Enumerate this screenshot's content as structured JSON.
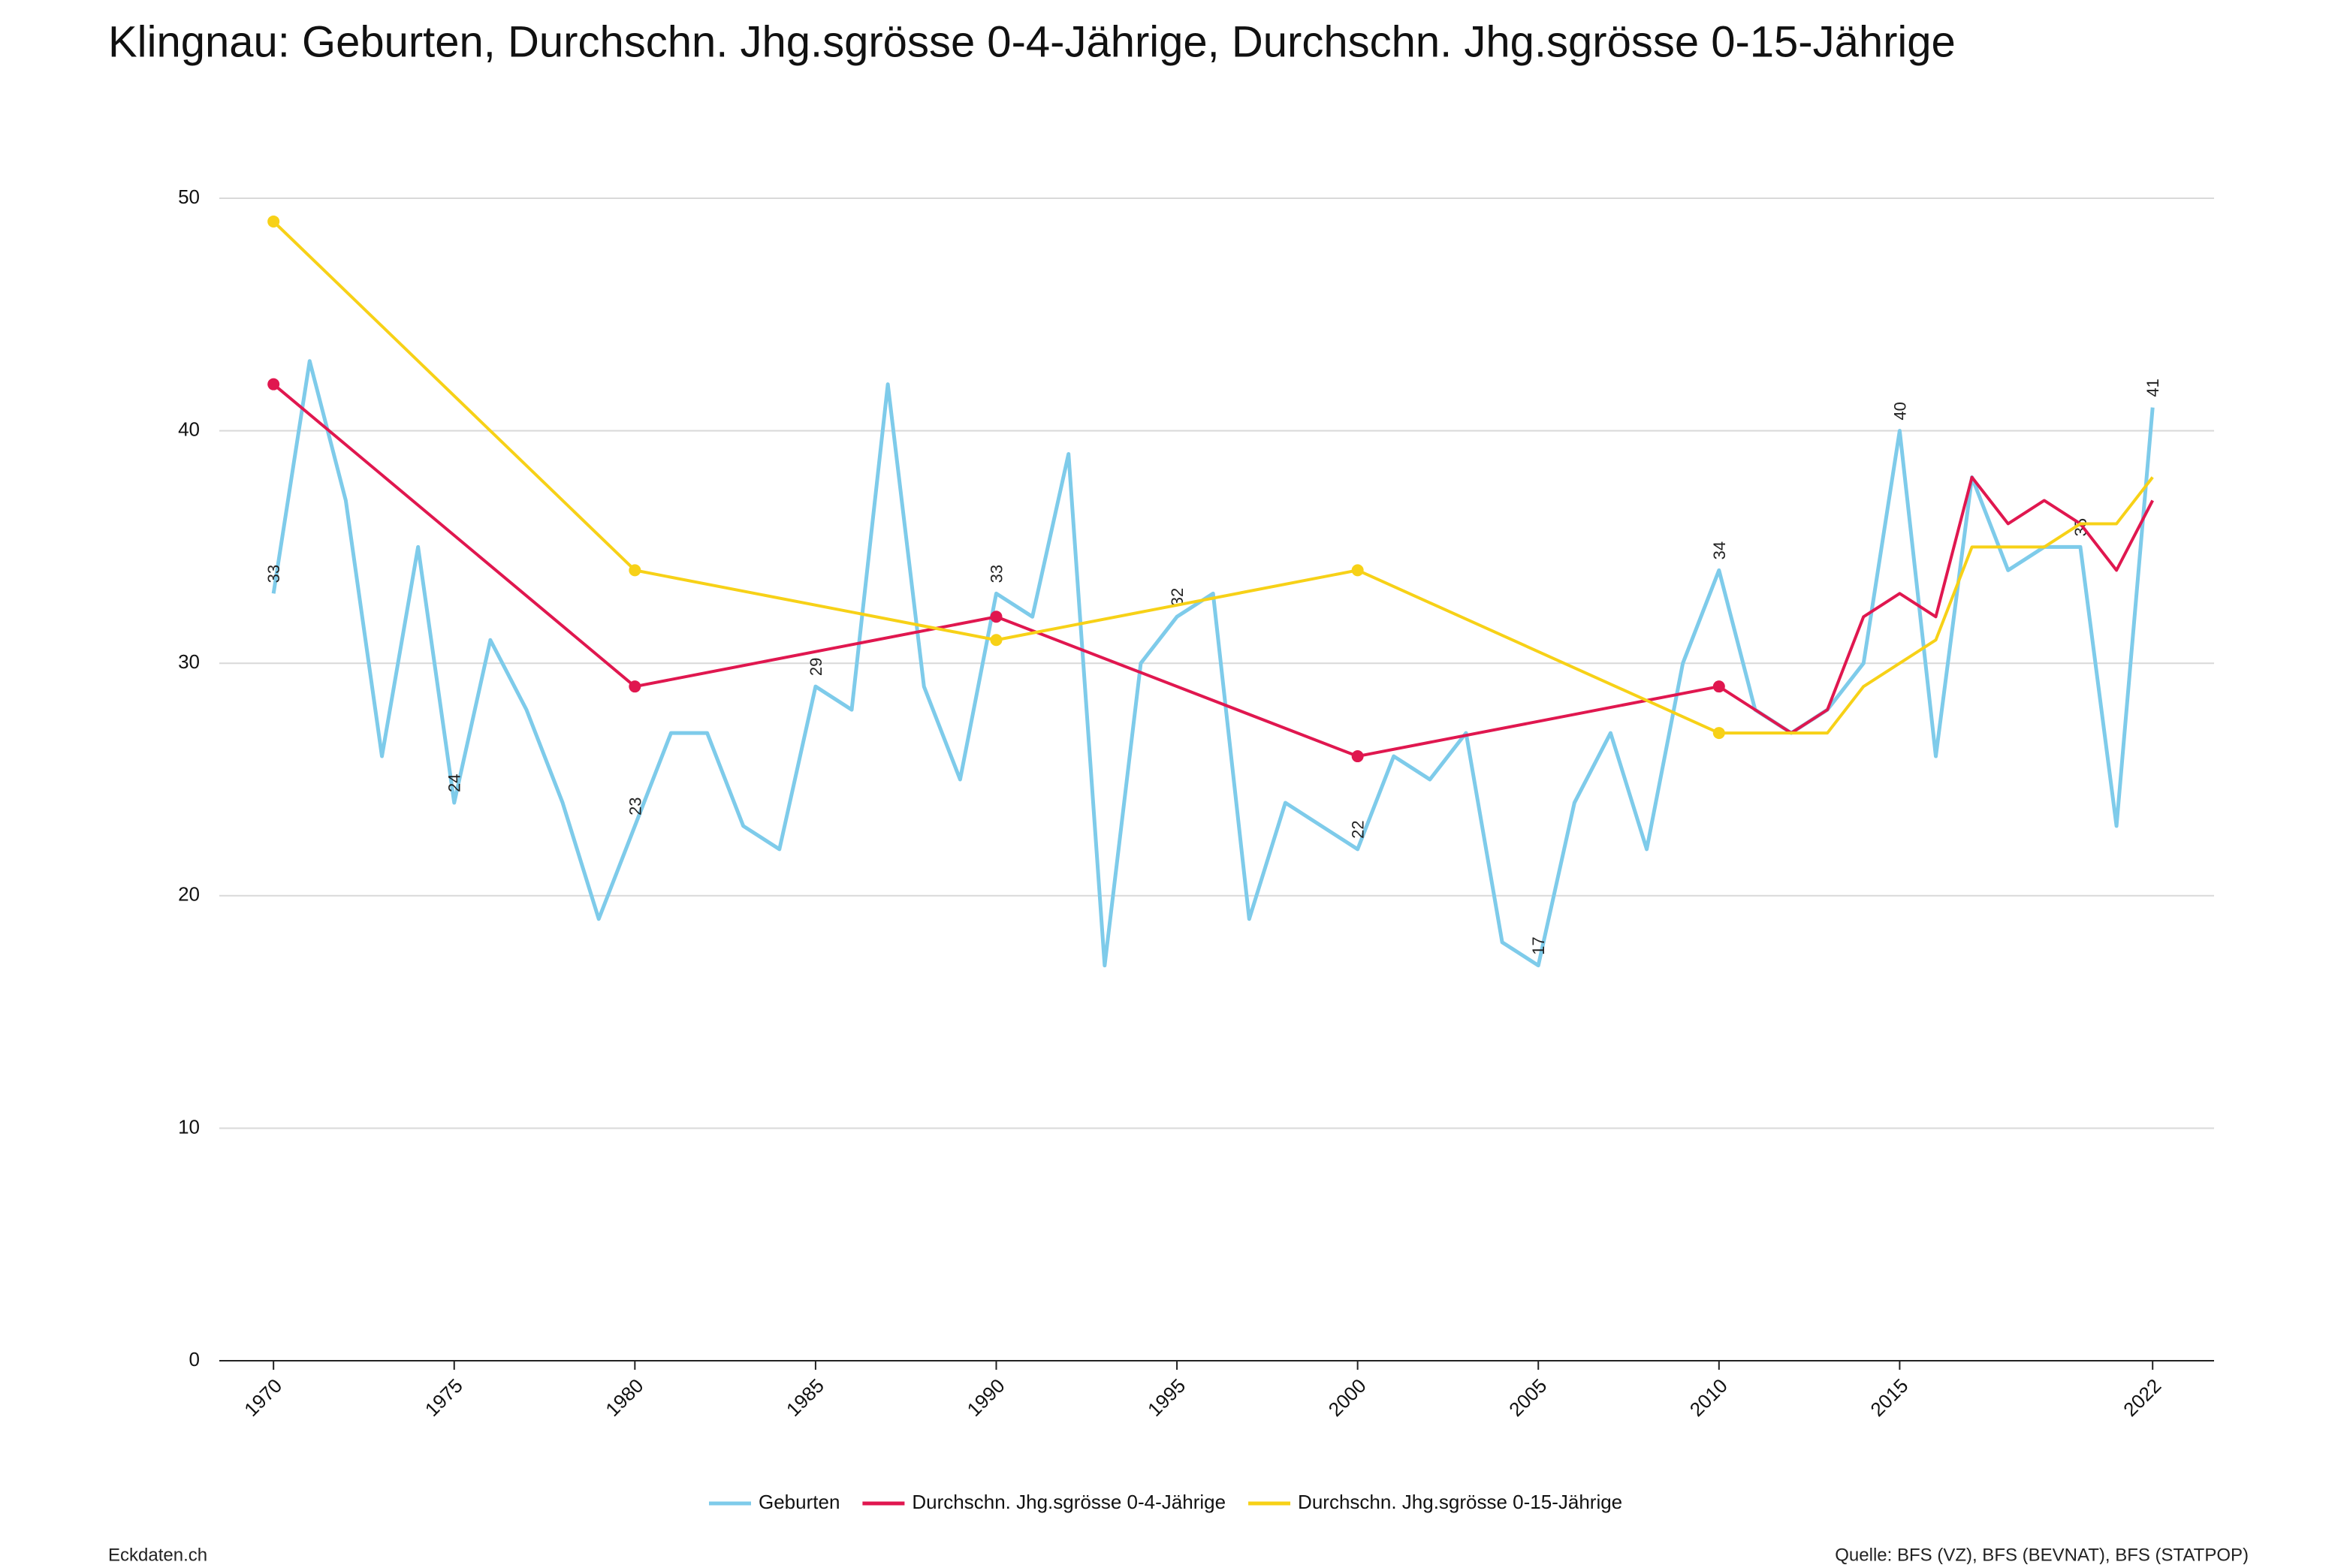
{
  "chart_data": {
    "type": "line",
    "title": "Klingnau: Geburten, Durchschn. Jhg.sgrösse 0-4-Jährige, Durchschn. Jhg.sgrösse 0-15-Jährige",
    "source": "Quelle: BFS (VZ), BFS (BEVNAT), BFS (STATPOP)",
    "brand": "Eckdaten.ch",
    "xlim": [
      1968.5,
      2023.7
    ],
    "xticks": [
      1970,
      1975,
      1980,
      1985,
      1990,
      1995,
      2000,
      2005,
      2010,
      2015,
      2022
    ],
    "ylim": [
      0,
      50
    ],
    "yticks": [
      0,
      10,
      20,
      30,
      40,
      50
    ],
    "grid": true,
    "legend": "bottom",
    "series": [
      {
        "name": "Geburten",
        "color": "#7ecbea",
        "x": [
          1970,
          1971,
          1972,
          1973,
          1974,
          1975,
          1976,
          1977,
          1978,
          1979,
          1980,
          1981,
          1982,
          1983,
          1984,
          1985,
          1986,
          1987,
          1988,
          1989,
          1990,
          1991,
          1992,
          1993,
          1994,
          1995,
          1996,
          1997,
          1998,
          1999,
          2000,
          2001,
          2002,
          2003,
          2004,
          2005,
          2006,
          2007,
          2008,
          2009,
          2010,
          2011,
          2012,
          2013,
          2014,
          2015,
          2016,
          2017,
          2018,
          2019,
          2020,
          2021,
          2022
        ],
        "values": [
          33,
          43,
          37,
          26,
          35,
          24,
          31,
          28,
          24,
          19,
          23,
          27,
          27,
          23,
          22,
          29,
          28,
          42,
          29,
          25,
          33,
          32,
          39,
          17,
          30,
          32,
          33,
          19,
          24,
          23,
          22,
          26,
          25,
          27,
          18,
          17,
          24,
          27,
          22,
          30,
          34,
          28,
          27,
          28,
          30,
          40,
          26,
          38,
          34,
          35,
          35,
          23,
          41
        ]
      },
      {
        "name": "Durchschn. Jhg.sgrösse 0-4-Jährige",
        "color": "#e0174f",
        "x": [
          1970,
          1980,
          1990,
          2000,
          2010,
          2011,
          2012,
          2013,
          2014,
          2015,
          2016,
          2017,
          2018,
          2019,
          2020,
          2021,
          2022
        ],
        "values": [
          42,
          29,
          32,
          26,
          29,
          28,
          27,
          28,
          32,
          33,
          32,
          38,
          36,
          37,
          36,
          34,
          37
        ]
      },
      {
        "name": "Durchschn. Jhg.sgrösse 0-15-Jährige",
        "color": "#f7d117",
        "x": [
          1970,
          1980,
          1990,
          2000,
          2010,
          2011,
          2012,
          2013,
          2014,
          2015,
          2016,
          2017,
          2018,
          2019,
          2020,
          2021,
          2022
        ],
        "values": [
          49,
          34,
          31,
          34,
          27,
          27,
          27,
          27,
          29,
          30,
          31,
          35,
          35,
          35,
          36,
          36,
          38
        ]
      }
    ]
  }
}
